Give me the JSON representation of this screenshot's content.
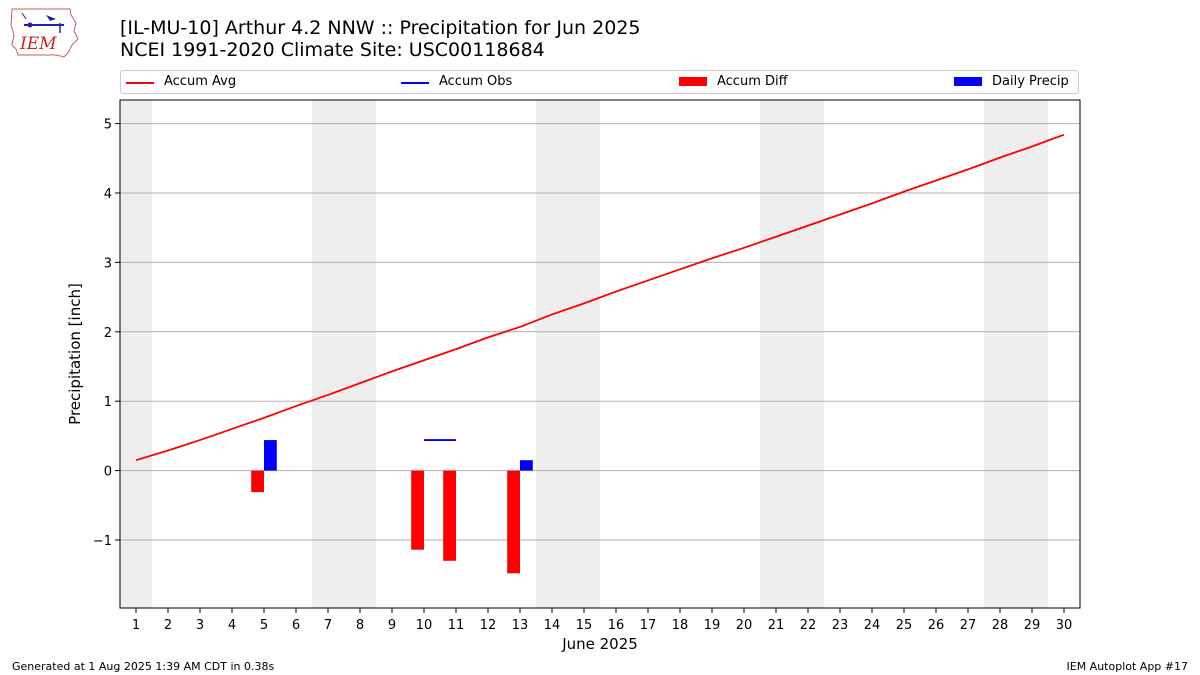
{
  "header": {
    "title_line1": "[IL-MU-10] Arthur 4.2 NNW :: Precipitation for Jun 2025",
    "title_line2": "NCEI 1991-2020 Climate Site: USC00118684",
    "logo_text": "IEM"
  },
  "legend": {
    "placement": "top",
    "items": [
      {
        "label": "Accum Avg",
        "kind": "line",
        "color": "#ff0000"
      },
      {
        "label": "Accum Obs",
        "kind": "line",
        "color": "#0000ff"
      },
      {
        "label": "Accum Diff",
        "kind": "box",
        "color": "#ff0000"
      },
      {
        "label": "Daily Precip",
        "kind": "box",
        "color": "#0000ff"
      }
    ]
  },
  "chart_data": {
    "type": "bar",
    "title": "[IL-MU-10] Arthur 4.2 NNW :: Precipitation for Jun 2025",
    "subtitle": "NCEI 1991-2020 Climate Site: USC00118684",
    "xlabel": "June 2025",
    "ylabel": "Precipitation [inch]",
    "x": [
      1,
      2,
      3,
      4,
      5,
      6,
      7,
      8,
      9,
      10,
      11,
      12,
      13,
      14,
      15,
      16,
      17,
      18,
      19,
      20,
      21,
      22,
      23,
      24,
      25,
      26,
      27,
      28,
      29,
      30
    ],
    "xlim": [
      0.5,
      30.5
    ],
    "ylim": [
      -1.98,
      5.34
    ],
    "yticks": [
      -1,
      0,
      1,
      2,
      3,
      4,
      5
    ],
    "ytick_labels": [
      "−1",
      "0",
      "1",
      "2",
      "3",
      "4",
      "5"
    ],
    "grid": "y",
    "weekends": [
      [
        0.5,
        1.5
      ],
      [
        6.5,
        8.5
      ],
      [
        13.5,
        15.5
      ],
      [
        20.5,
        22.5
      ],
      [
        27.5,
        29.5
      ]
    ],
    "shade_color": "#eeeeee",
    "series": [
      {
        "name": "Accum Avg",
        "kind": "line",
        "color": "#ff0000",
        "values": [
          0.15,
          0.29,
          0.44,
          0.6,
          0.76,
          0.93,
          1.09,
          1.26,
          1.43,
          1.59,
          1.75,
          1.92,
          2.07,
          2.25,
          2.41,
          2.58,
          2.74,
          2.9,
          3.06,
          3.21,
          3.37,
          3.53,
          3.69,
          3.85,
          4.02,
          4.18,
          4.34,
          4.51,
          4.67,
          4.84
        ]
      },
      {
        "name": "Accum Obs",
        "kind": "segment",
        "color": "#0000ff",
        "points": [
          {
            "x": 10,
            "y": 0.44
          },
          {
            "x": 11,
            "y": 0.44
          }
        ]
      },
      {
        "name": "Accum Diff",
        "kind": "bar",
        "color": "#ff0000",
        "offset": -0.2,
        "points": [
          {
            "x": 5,
            "y": -0.31
          },
          {
            "x": 10,
            "y": -1.14
          },
          {
            "x": 11,
            "y": -1.3
          },
          {
            "x": 13,
            "y": -1.48
          }
        ]
      },
      {
        "name": "Daily Precip",
        "kind": "bar",
        "color": "#0000ff",
        "offset": 0.2,
        "points": [
          {
            "x": 5,
            "y": 0.44
          },
          {
            "x": 13,
            "y": 0.15
          }
        ]
      }
    ]
  },
  "footer": {
    "left": "Generated at 1 Aug 2025 1:39 AM CDT in 0.38s",
    "right": "IEM Autoplot App #17"
  }
}
